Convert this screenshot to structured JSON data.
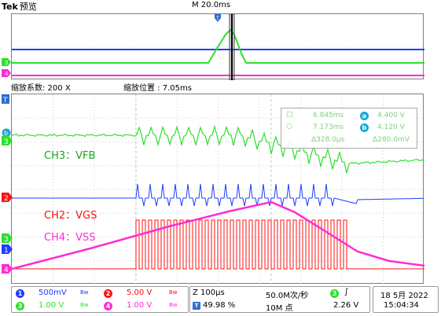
{
  "header": {
    "brand": "Tek",
    "mode": "预览",
    "timebase": "M 20.0ms"
  },
  "zoom": {
    "factor": "缩放系数: 200 X",
    "position": "缩放位置 : 7.05ms"
  },
  "channel_labels": {
    "ch3": "CH3：VFB",
    "ch2": "CH2：VGS",
    "ch4": "CH4：VSS"
  },
  "cursors": {
    "t1": "6.845ms",
    "a_val": "4.400 V",
    "t2": "7.173ms",
    "b_val": "4.120 V",
    "dt": "Δ328.0μs",
    "dv": "Δ280.0mV",
    "a_badge": "a",
    "b_badge": "b"
  },
  "channel_markers": {
    "ch3": "3",
    "ch2": "2",
    "ch4": "4",
    "ch1": "1",
    "trig": "T",
    "b": "b"
  },
  "status": {
    "ch1_num": "1",
    "ch1_scale": "500mV",
    "ch1_bw": "Bw",
    "ch2_num": "2",
    "ch2_scale": "5.00 V",
    "ch2_bw": "Bw",
    "ch3_num": "3",
    "ch3_scale": "1.00 V",
    "ch3_bw": "Bw",
    "ch4_num": "4",
    "ch4_scale": "1.00 V",
    "ch4_bw": "Bw",
    "hz_scale": "Z 100μs",
    "hz_percent": "49.98 %",
    "sample_rate": "50.0M次/秒",
    "record": "10M 点",
    "trig_ch": "3",
    "trig_slope": "∫",
    "trig_level": "2.26 V",
    "date": "18 5月 2022",
    "time": "15:04:34"
  },
  "colors": {
    "ch1": "#1e3cff",
    "ch2": "#ff1010",
    "ch3": "#2ee02e",
    "ch4": "#ff2bd6"
  }
}
